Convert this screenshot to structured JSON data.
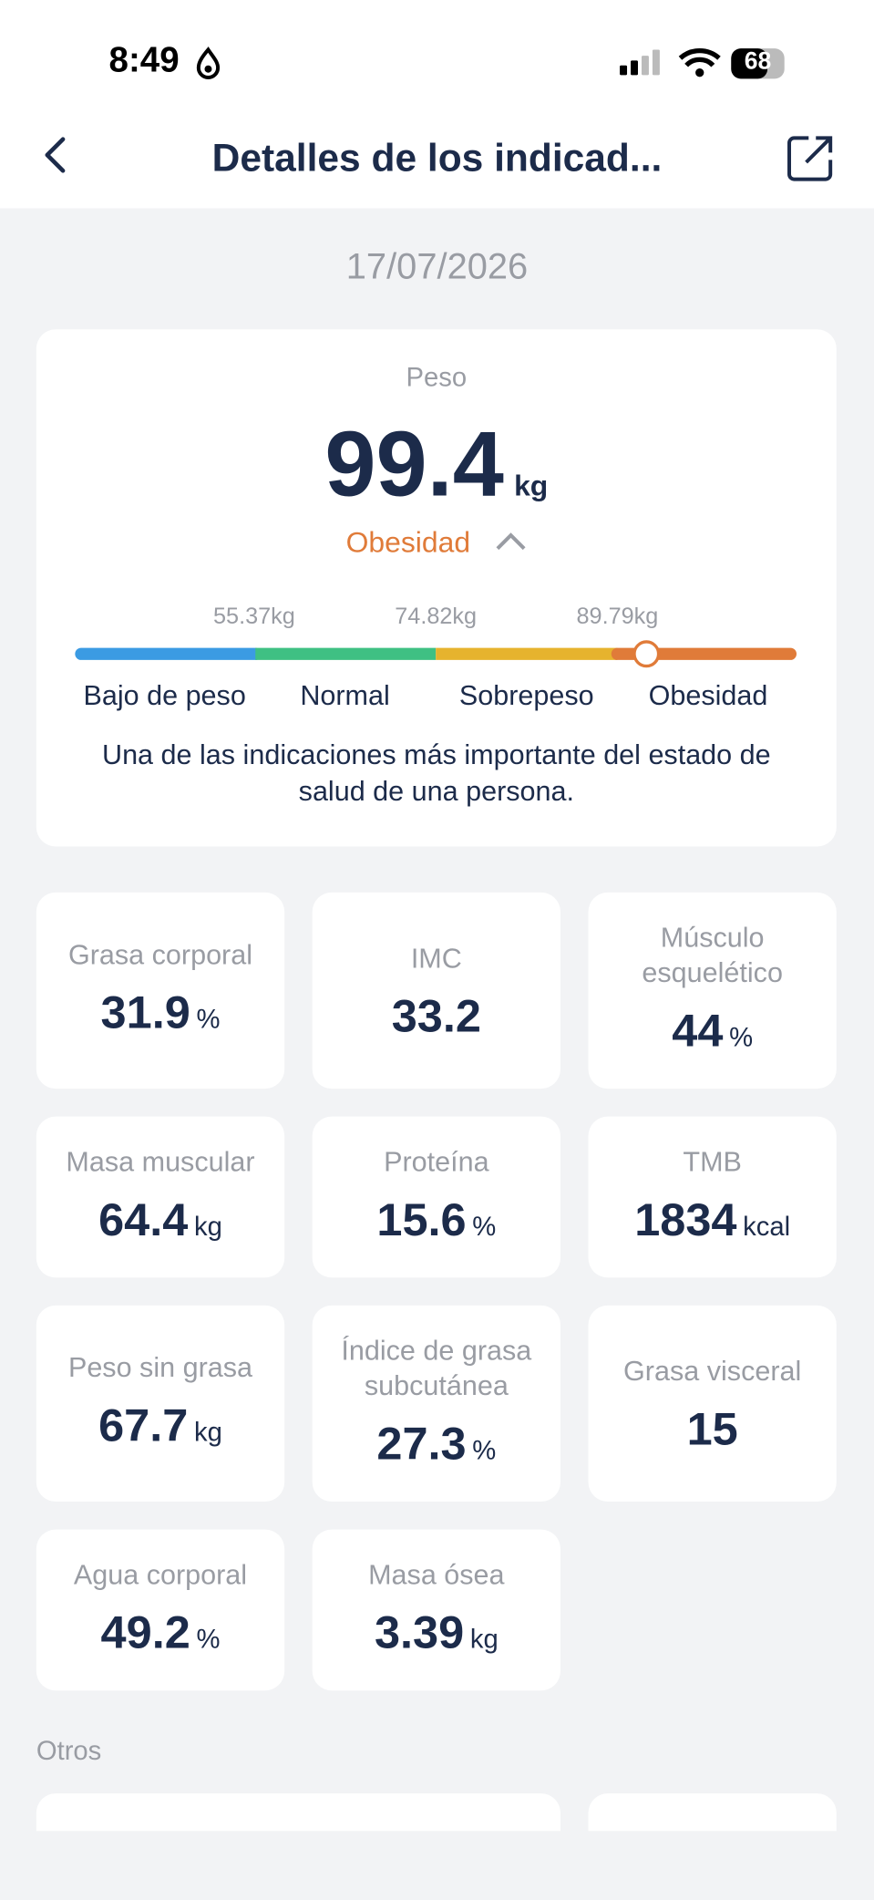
{
  "status_bar": {
    "time": "8:49",
    "battery": "68"
  },
  "header": {
    "title": "Detalles de los indicad..."
  },
  "date": "17/07/2026",
  "weight_card": {
    "label": "Peso",
    "value": "99.4",
    "unit": "kg",
    "status": "Obesidad",
    "thresholds": [
      "55.37kg",
      "74.82kg",
      "89.79kg"
    ],
    "ranges": [
      "Bajo de peso",
      "Normal",
      "Sobrepeso",
      "Obesidad"
    ],
    "description": "Una de las indicaciones más importante del estado de salud de una persona."
  },
  "metrics": [
    {
      "label": "Grasa corporal",
      "value": "31.9",
      "unit": "%"
    },
    {
      "label": "IMC",
      "value": "33.2"
    },
    {
      "label": "Músculo esquelético",
      "value": "44",
      "unit": "%"
    },
    {
      "label": "Masa muscular",
      "value": "64.4",
      "unit": "kg"
    },
    {
      "label": "Proteína",
      "value": "15.6",
      "unit": "%"
    },
    {
      "label": "TMB",
      "value": "1834",
      "unit": "kcal"
    },
    {
      "label": "Peso sin grasa",
      "value": "67.7",
      "unit": "kg"
    },
    {
      "label": "Índice de grasa subcutánea",
      "value": "27.3",
      "unit": "%"
    },
    {
      "label": "Grasa visceral",
      "value": "15"
    },
    {
      "label": "Agua corporal",
      "value": "49.2",
      "unit": "%"
    },
    {
      "label": "Masa ósea",
      "value": "3.39",
      "unit": "kg"
    }
  ],
  "section_other": {
    "title": "Otros"
  }
}
